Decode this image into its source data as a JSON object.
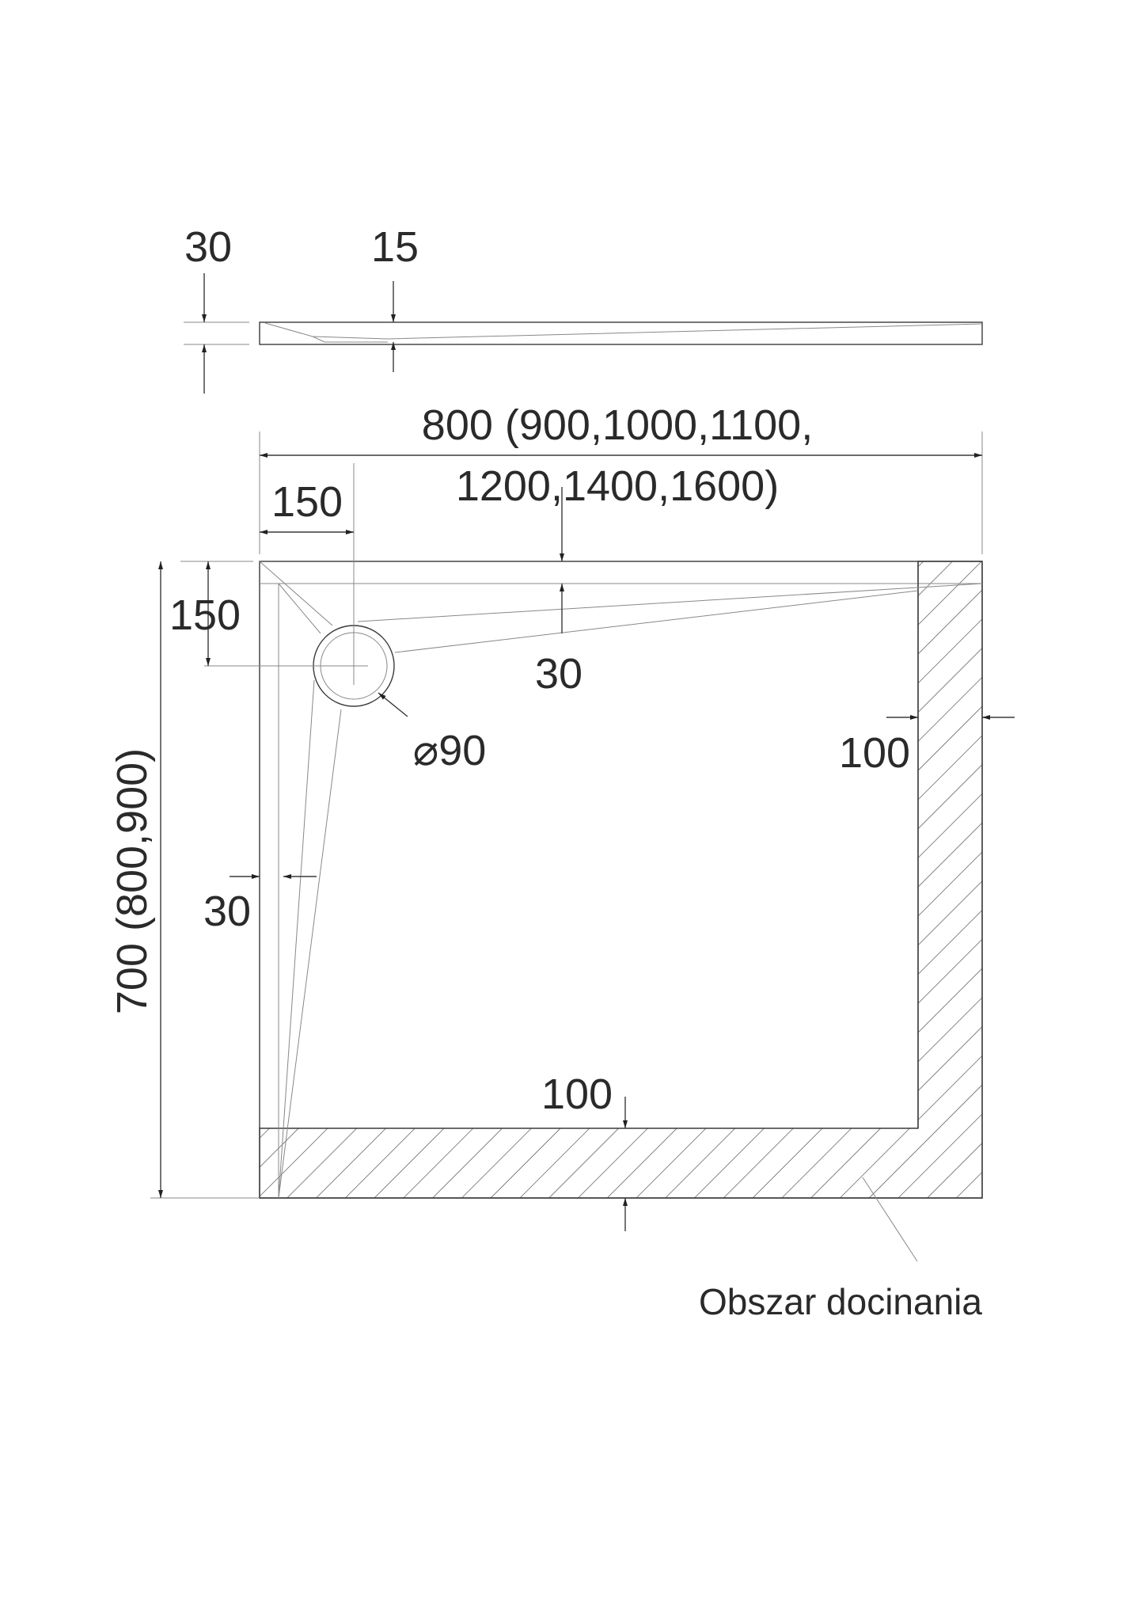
{
  "profile": {
    "height_label": "30",
    "depth_label": "15"
  },
  "width_label_line1": "800 (900,1000,1100,",
  "width_label_line2": "1200,1400,1600)",
  "height_label": "700 (800,900)",
  "drain_offset_x": "150",
  "drain_offset_y": "150",
  "top_slope_label": "30",
  "drain_diameter": "⌀90",
  "right_trim_label": "100",
  "left_edge_label": "30",
  "bottom_trim_label": "100",
  "trim_area_label": "Obszar docinania"
}
